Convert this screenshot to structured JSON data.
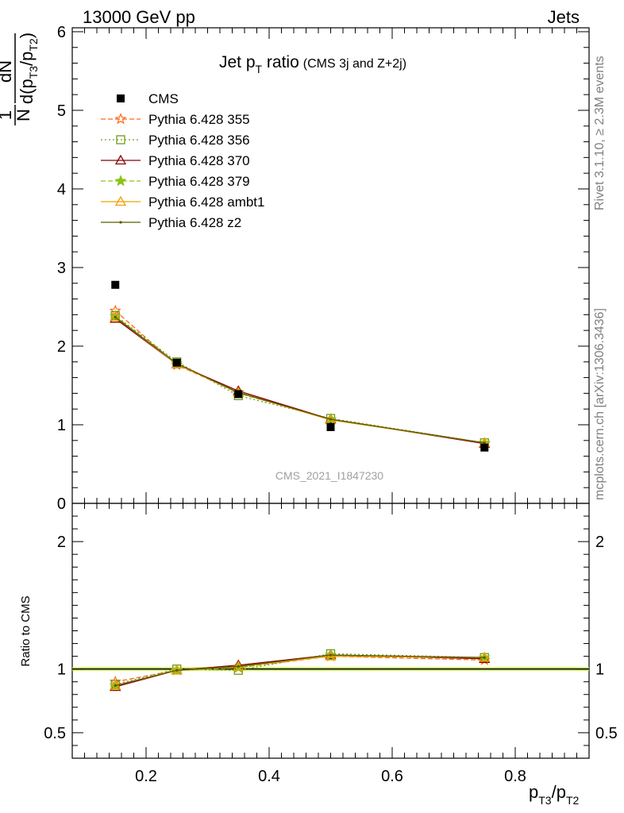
{
  "header": {
    "left": "13000 GeV pp",
    "right": "Jets"
  },
  "side_labels": {
    "rivet": "Rivet 3.1.10, ≥ 2.3M events",
    "mcplots": "mcplots.cern.ch [arXiv:1306.3436]"
  },
  "chart_data": [
    {
      "type": "scatter",
      "panel": "main",
      "title_parts": {
        "main": "Jet p",
        "sub": "T",
        "rest": " ratio",
        "small": "(CMS 3j and Z+2j)"
      },
      "watermark": "CMS_2021_I1847230",
      "ylabel_parts": {
        "num": "dN",
        "den_prefix": "d(p",
        "den_sub1": "T3",
        "den_mid": "/p",
        "den_sub2": "T2",
        "den_suffix": ")",
        "frac": "1",
        "frac_den": "N"
      },
      "xlim": [
        0.08,
        0.92
      ],
      "ylim": [
        0,
        6.05
      ],
      "yticks": [
        0,
        1,
        2,
        3,
        4,
        5,
        6
      ],
      "ytick_labels": [
        "0",
        "1",
        "2",
        "3",
        "4",
        "5",
        "6"
      ],
      "legend_position": "top-left",
      "x": [
        0.15,
        0.25,
        0.35,
        0.5,
        0.75
      ],
      "series": [
        {
          "name": "CMS",
          "color": "#000000",
          "marker": "square-filled",
          "line": "none",
          "values": [
            2.78,
            1.79,
            1.39,
            0.97,
            0.71
          ]
        },
        {
          "name": "Pythia 6.428 355",
          "color": "#ff6a1a",
          "marker": "star-open",
          "line": "dashed",
          "values": [
            2.45,
            1.76,
            1.41,
            1.07,
            0.76
          ]
        },
        {
          "name": "Pythia 6.428 356",
          "color": "#6e9a1a",
          "marker": "square-open",
          "line": "dotted",
          "values": [
            2.39,
            1.8,
            1.37,
            1.08,
            0.77
          ]
        },
        {
          "name": "Pythia 6.428 370",
          "color": "#8b0000",
          "marker": "triangle-open",
          "line": "solid",
          "values": [
            2.35,
            1.77,
            1.43,
            1.07,
            0.76
          ]
        },
        {
          "name": "Pythia 6.428 379",
          "color": "#8cc21a",
          "marker": "star-filled",
          "line": "dashed",
          "values": [
            2.38,
            1.78,
            1.4,
            1.07,
            0.77
          ]
        },
        {
          "name": "Pythia 6.428 ambt1",
          "color": "#f0a000",
          "marker": "triangle-open",
          "line": "solid",
          "values": [
            2.37,
            1.77,
            1.41,
            1.06,
            0.77
          ]
        },
        {
          "name": "Pythia 6.428 z2",
          "color": "#5a5a00",
          "marker": "dot",
          "line": "solid",
          "values": [
            2.37,
            1.78,
            1.41,
            1.07,
            0.77
          ]
        }
      ]
    },
    {
      "type": "scatter",
      "panel": "ratio",
      "ylabel": "Ratio to CMS",
      "xlabel_parts": {
        "p1": "p",
        "s1": "T3",
        "mid": "/p",
        "s2": "T2"
      },
      "xlim": [
        0.08,
        0.92
      ],
      "ylim": [
        0.3,
        2.3
      ],
      "xticks": [
        0.2,
        0.4,
        0.6,
        0.8
      ],
      "xtick_labels": [
        "0.2",
        "0.4",
        "0.6",
        "0.8"
      ],
      "yticks": [
        0.5,
        1,
        2
      ],
      "ytick_labels": [
        "0.5",
        "1",
        "2"
      ],
      "reference_line": 1,
      "band_color": "#c8f040",
      "x": [
        0.15,
        0.25,
        0.35,
        0.5,
        0.75
      ],
      "series": [
        {
          "name": "Pythia 6.428 355",
          "values": [
            0.9,
            0.99,
            1.01,
            1.1,
            1.07
          ]
        },
        {
          "name": "Pythia 6.428 356",
          "values": [
            0.88,
            1.0,
            0.99,
            1.12,
            1.09
          ]
        },
        {
          "name": "Pythia 6.428 370",
          "values": [
            0.86,
            0.99,
            1.03,
            1.11,
            1.08
          ]
        },
        {
          "name": "Pythia 6.428 379",
          "values": [
            0.87,
            0.99,
            1.01,
            1.11,
            1.09
          ]
        },
        {
          "name": "Pythia 6.428 ambt1",
          "values": [
            0.87,
            0.99,
            1.02,
            1.1,
            1.09
          ]
        },
        {
          "name": "Pythia 6.428 z2",
          "values": [
            0.87,
            0.99,
            1.02,
            1.11,
            1.09
          ]
        }
      ]
    }
  ]
}
